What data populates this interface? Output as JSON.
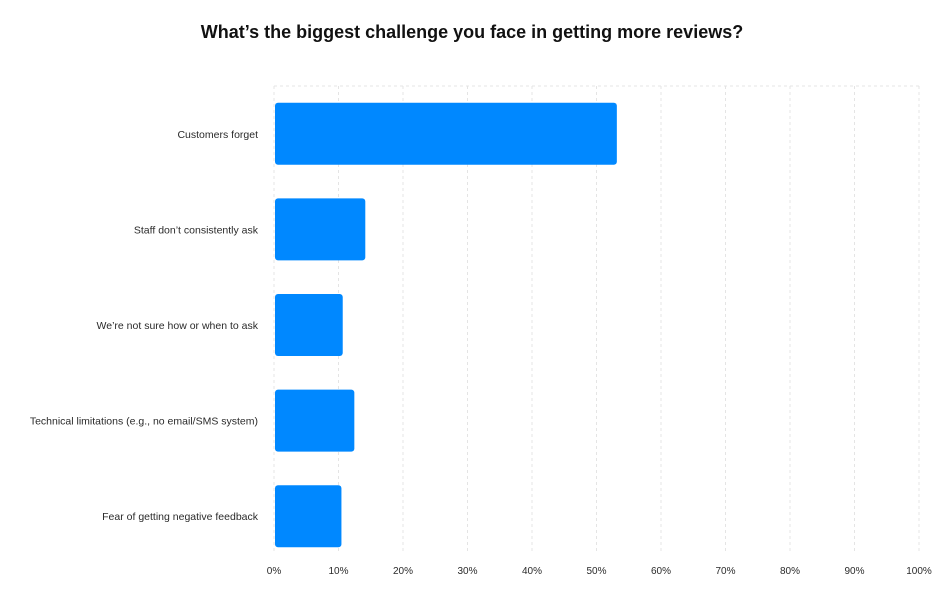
{
  "chart_data": {
    "type": "bar",
    "orientation": "horizontal",
    "title": "What’s the biggest challenge you face in getting more reviews?",
    "categories": [
      "Customers forget",
      "Staff don’t consistently ask",
      "We’re not sure how or when to ask",
      "Technical limitations (e.g., no email/SMS system)",
      "Fear of getting negative feedback"
    ],
    "values": [
      53,
      14,
      10.5,
      12.3,
      10.3
    ],
    "xlim": [
      0,
      100
    ],
    "xticks": [
      "0%",
      "10%",
      "20%",
      "30%",
      "40%",
      "50%",
      "60%",
      "70%",
      "80%",
      "90%",
      "100%"
    ],
    "xlabel": "",
    "ylabel": "",
    "grid": true,
    "bar_color": "#0088ff",
    "grid_color": "#e4e4e4"
  }
}
